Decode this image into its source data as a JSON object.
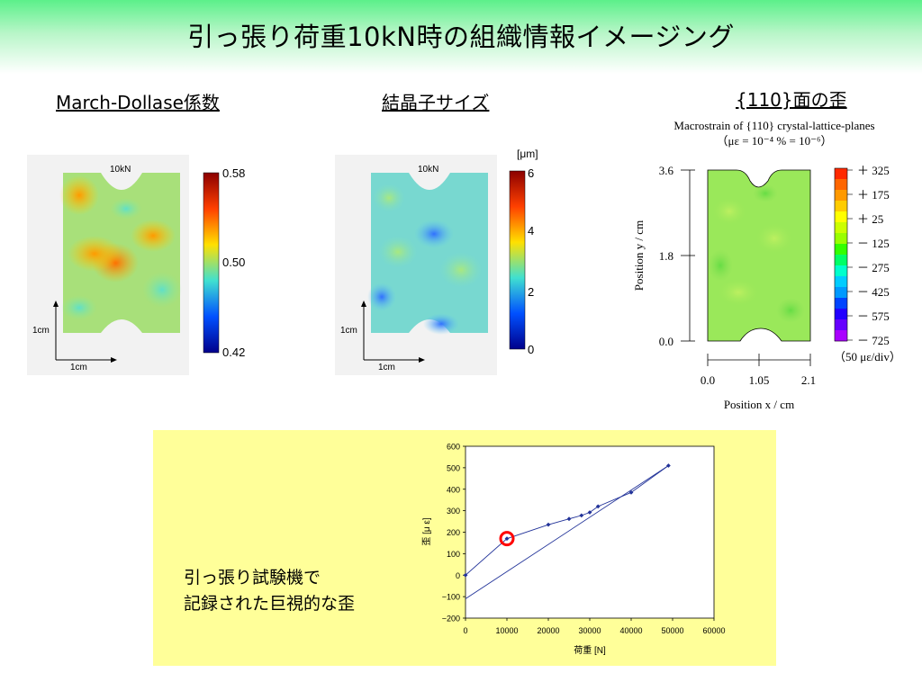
{
  "slide": {
    "title": "引っ張り荷重10kN時の組織情報イメージング"
  },
  "panels": [
    {
      "heading": "March-Dollase係数",
      "load_label": "10kN",
      "scale_label_y": "1cm",
      "scale_label_x": "1cm",
      "unit": "",
      "colorbar_ticks": [
        "0.58",
        "0.50",
        "0.42"
      ],
      "colorbar_colors": [
        "#8b0000",
        "#ff6000",
        "#ffe000",
        "#40e0d0",
        "#0040ff",
        "#00008b"
      ]
    },
    {
      "heading": "結晶子サイズ",
      "load_label": "10kN",
      "scale_label_y": "1cm",
      "scale_label_x": "1cm",
      "unit": "[μm]",
      "colorbar_ticks": [
        "6",
        "4",
        "2",
        "0"
      ],
      "colorbar_colors": [
        "#8b0000",
        "#ff6000",
        "#ffe000",
        "#40e0d0",
        "#0040ff",
        "#00008b"
      ]
    },
    {
      "heading": "{110}面の歪",
      "caption_line1": "Macrostrain of {110} crystal-lattice-planes",
      "caption_line2": "（με = 10⁻⁴ % = 10⁻⁶）",
      "y_axis_label": "Position y / cm",
      "x_axis_label": "Position x / cm",
      "y_ticks": [
        "3.6",
        "1.8",
        "0.0"
      ],
      "x_ticks": [
        "0.0",
        "1.05",
        "2.1"
      ],
      "legend": [
        "＋ 325",
        "＋ 175",
        "＋ 25",
        "－ 125",
        "－ 275",
        "－ 425",
        "－ 575",
        "－ 725"
      ],
      "legend_note": "（50 με/div）",
      "legend_colors": [
        "#ff2a00",
        "#ff6600",
        "#ff9900",
        "#ffcc00",
        "#ffff00",
        "#ccff00",
        "#99ff00",
        "#33ff00",
        "#00ff66",
        "#00ffcc",
        "#00ccff",
        "#0099ff",
        "#0044ff",
        "#2200ff",
        "#6600ff",
        "#aa00ff"
      ]
    }
  ],
  "bottom": {
    "text_line1": "引っ張り試験機で",
    "text_line2": "記録された巨視的な歪"
  },
  "chart_data": {
    "type": "line",
    "title": "",
    "xlabel": "荷重 [N]",
    "ylabel": "歪 [μ ε]",
    "xlim": [
      0,
      60000
    ],
    "ylim": [
      -200,
      600
    ],
    "x_ticks": [
      0,
      10000,
      20000,
      30000,
      40000,
      50000,
      60000
    ],
    "y_ticks": [
      600,
      500,
      400,
      300,
      200,
      100,
      0,
      -100,
      -200
    ],
    "grid": false,
    "series": [
      {
        "points": [
          [
            0,
            0
          ],
          [
            10000,
            170
          ],
          [
            20000,
            235
          ],
          [
            25000,
            262
          ],
          [
            28000,
            278
          ],
          [
            30000,
            292
          ],
          [
            32000,
            320
          ],
          [
            40000,
            385
          ],
          [
            49000,
            510
          ]
        ],
        "color": "#223399",
        "markers": true
      },
      {
        "points": [
          [
            0,
            -110
          ],
          [
            49000,
            510
          ]
        ],
        "color": "#223399",
        "markers": false
      }
    ],
    "highlight": {
      "x": 10000,
      "y": 170,
      "color": "#ff0000"
    }
  }
}
